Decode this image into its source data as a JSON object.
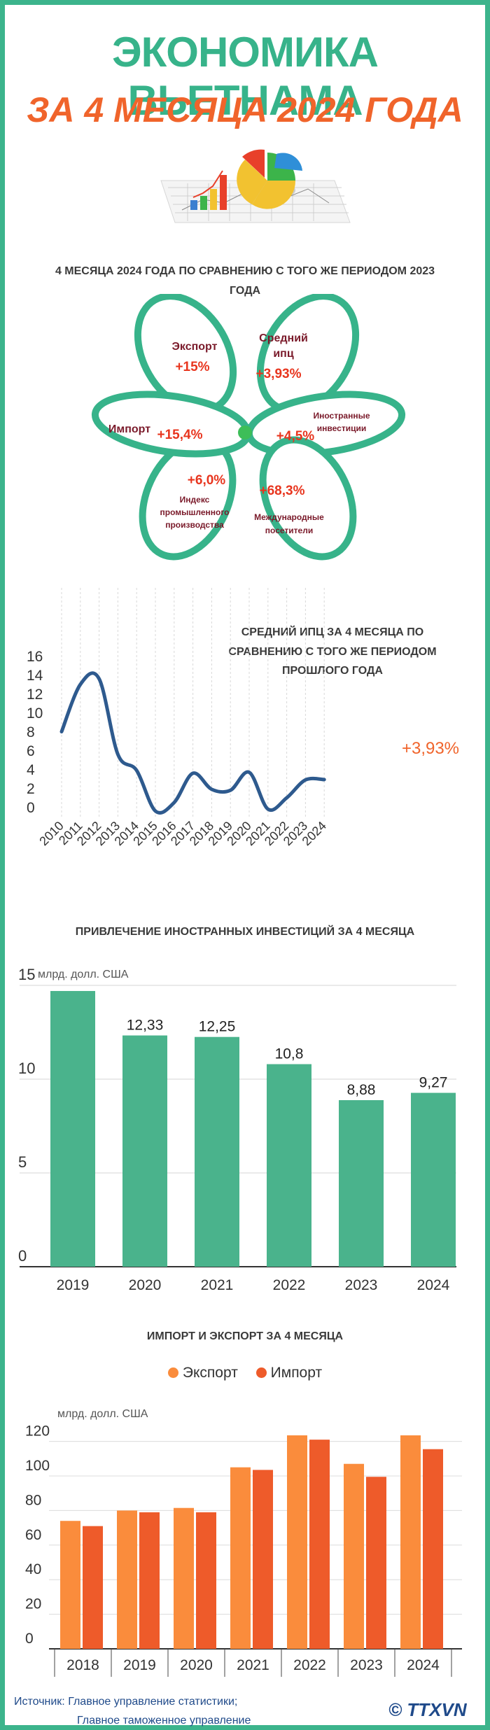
{
  "title": {
    "line1": "ЭКОНОМИКА ВЬЕТНАМА",
    "line2": "ЗА 4 МЕСЯЦА 2024 ГОДА"
  },
  "flower": {
    "heading": "4 МЕСЯЦА 2024 ГОДА ПО СРАВНЕНИЮ С ТОГО ЖЕ ПЕРИОДОМ 2023 ГОДА",
    "petals": [
      {
        "label": "Экспорт",
        "value": "+15%"
      },
      {
        "label": "Средний ипц",
        "value": "+3,93%"
      },
      {
        "label": "Иностранные инвестиции",
        "value": "+4,5%"
      },
      {
        "label": "Международные посетители",
        "value": "+68,3%"
      },
      {
        "label": "Индекс промышленного производства",
        "value": "+6,0%"
      },
      {
        "label": "Импорт",
        "value": "+15,4%"
      }
    ]
  },
  "cpi": {
    "annotation": "СРЕДНИЙ ИПЦ ЗА 4 МЕСЯЦА ПО СРАВНЕНИЮ С ТОГО ЖЕ ПЕРИОДОМ ПРОШЛОГО ГОДА",
    "callout": "+3,93%"
  },
  "fdi": {
    "heading": "ПРИВЛЕЧЕНИЕ ИНОСТРАННЫХ ИНВЕСТИЦИЙ ЗА 4 МЕСЯЦА",
    "unit": "млрд. долл. США"
  },
  "trade": {
    "heading": "ИМПОРТ И ЭКСПОРТ ЗА 4 МЕСЯЦА",
    "unit": "млрд. долл. США"
  },
  "source": {
    "line1": "Источник: Главное управление статистики;",
    "line2": "Главное таможенное управление"
  },
  "logo": "© TTXVN",
  "colors": {
    "teal": "#37b38a",
    "orange": "#f0642b",
    "export": "#fa8c3c",
    "import": "#ee5b2a",
    "navy": "#2e5a8e",
    "bar": "#4ab38c"
  },
  "chart_data": [
    {
      "type": "line",
      "x": [
        "2010",
        "2011",
        "2012",
        "2013",
        "2014",
        "2015",
        "2016",
        "2017",
        "2018",
        "2019",
        "2020",
        "2021",
        "2022",
        "2023",
        "2024"
      ],
      "series": [
        {
          "values": [
            9,
            14,
            14.6,
            6.6,
            4.9,
            0.6,
            1.5,
            4.6,
            2.9,
            2.8,
            4.7,
            0.8,
            2,
            3.9,
            3.93
          ]
        }
      ],
      "ylim": [
        0,
        16
      ],
      "yticks": [
        0,
        2,
        4,
        6,
        8,
        10,
        12,
        14,
        16
      ]
    },
    {
      "type": "bar",
      "title": "ПРИВЛЕЧЕНИЕ ИНОСТРАННЫХ ИНВЕСТИЦИЙ ЗА 4 МЕСЯЦА",
      "ylabel": "млрд. долл. США",
      "categories": [
        "2019",
        "2020",
        "2021",
        "2022",
        "2023",
        "2024"
      ],
      "values": [
        14.7,
        12.33,
        12.25,
        10.8,
        8.88,
        9.27
      ],
      "data_labels": [
        "",
        "12,33",
        "12,25",
        "10,8",
        "8,88",
        "9,27"
      ],
      "ylim": [
        0,
        15
      ],
      "yticks": [
        0,
        5,
        10,
        15
      ]
    },
    {
      "type": "bar",
      "title": "ИМПОРТ И ЭКСПОРТ ЗА 4 МЕСЯЦА",
      "ylabel": "млрд. долл. США",
      "categories": [
        "2018",
        "2019",
        "2020",
        "2021",
        "2022",
        "2023",
        "2024"
      ],
      "series": [
        {
          "name": "Экспорт",
          "values": [
            74,
            80,
            81.5,
            105,
            123.5,
            107,
            123.5
          ]
        },
        {
          "name": "Импорт",
          "values": [
            71,
            79,
            79,
            103.5,
            121,
            99.5,
            115.5
          ]
        }
      ],
      "ylim": [
        0,
        120
      ],
      "yticks": [
        0,
        20,
        40,
        60,
        80,
        100,
        120
      ],
      "legend": "top-center"
    }
  ]
}
